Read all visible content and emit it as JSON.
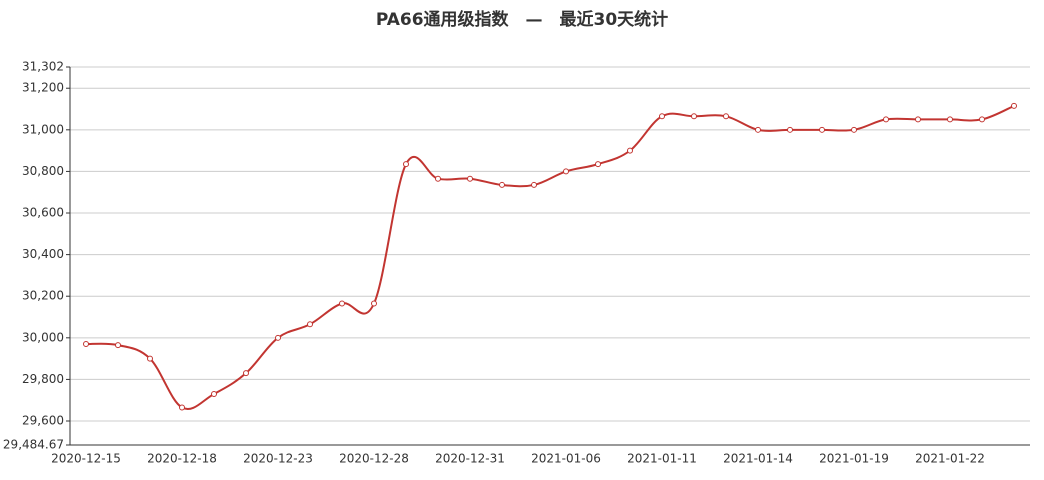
{
  "chart_data": {
    "type": "line",
    "title": "PA66通用级指数　—　最近30天统计",
    "categories": [
      "2020-12-15",
      null,
      null,
      "2020-12-18",
      null,
      null,
      "2020-12-23",
      null,
      null,
      "2020-12-28",
      null,
      null,
      "2020-12-31",
      null,
      null,
      "2021-01-06",
      null,
      null,
      "2021-01-11",
      null,
      null,
      "2021-01-14",
      null,
      null,
      "2021-01-19",
      null,
      null,
      "2021-01-22",
      null,
      null
    ],
    "series": [
      {
        "color": "#c23531",
        "values": [
          29970,
          29965,
          29900,
          29665,
          29730,
          29830,
          30000,
          30065,
          30165,
          30165,
          30835,
          30765,
          30765,
          30735,
          30735,
          30800,
          30835,
          30900,
          31065,
          31065,
          31065,
          31000,
          31000,
          31000,
          31000,
          31050,
          31050,
          31050,
          31050,
          31115
        ]
      }
    ],
    "ylim": [
      29484.67,
      31302
    ],
    "yticks": [
      {
        "value": 29484.67,
        "label": "29,484.67"
      },
      {
        "value": 29600,
        "label": "29,600"
      },
      {
        "value": 29800,
        "label": "29,800"
      },
      {
        "value": 30000,
        "label": "30,000"
      },
      {
        "value": 30200,
        "label": "30,200"
      },
      {
        "value": 30400,
        "label": "30,400"
      },
      {
        "value": 30600,
        "label": "30,600"
      },
      {
        "value": 30800,
        "label": "30,800"
      },
      {
        "value": 31000,
        "label": "31,000"
      },
      {
        "value": 31200,
        "label": "31,200"
      },
      {
        "value": 31302,
        "label": "31,302"
      }
    ],
    "grid": true
  }
}
